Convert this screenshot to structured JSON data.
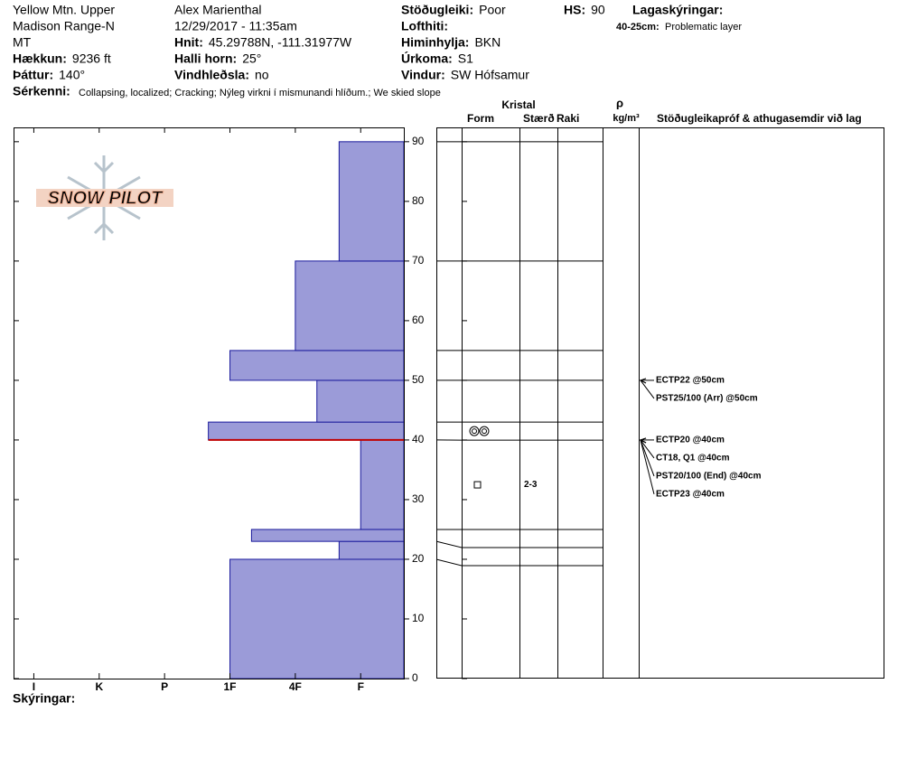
{
  "header": {
    "fields": [
      {
        "value": "Yellow Mtn. Upper"
      },
      {
        "value": "Madison Range-N"
      },
      {
        "value": "MT"
      },
      {
        "label": "Hækkun:",
        "value": "9236 ft"
      },
      {
        "label": "Þáttur:",
        "value": "140°"
      },
      {
        "value": "Alex Marienthal"
      },
      {
        "value": "12/29/2017 - 11:35am"
      },
      {
        "label": "Hnit:",
        "value": "45.29788N, -111.31977W"
      },
      {
        "label": "Halli horn:",
        "value": "25°"
      },
      {
        "label": "Vindhleðsla:",
        "value": "no"
      },
      {
        "label": "Stöðugleiki:",
        "value": "Poor"
      },
      {
        "label": "Lofthiti:"
      },
      {
        "label": "Himinhylja:",
        "value": "BKN"
      },
      {
        "label": "Úrkoma:",
        "value": "S1"
      },
      {
        "label": "Vindur:",
        "value": "SW Hófsamur"
      },
      {
        "label": "HS:",
        "value": 90
      }
    ],
    "features": {
      "label": "Sérkenni:",
      "value": "Collapsing, localized;  Cracking;  Nýleg virkni í mismunandi hlíðum.;  We skied slope"
    },
    "legend": {
      "title": "Lagaskýringar:",
      "entries": [
        {
          "label": "40-25cm:",
          "text": "Problematic layer"
        }
      ]
    },
    "logo": "SNOW PILOT"
  },
  "chart_data": {
    "type": "bar",
    "orientation": "horizontal",
    "color": "#9b9bd8",
    "edge_color": "#1a1a9c",
    "layers": [
      {
        "top": 20,
        "bottom": 0,
        "hardness": 3
      },
      {
        "top": 23,
        "bottom": 20,
        "hardness": 1.33
      },
      {
        "top": 25,
        "bottom": 23,
        "hardness": 2.67
      },
      {
        "top": 40,
        "bottom": 25,
        "hardness": 1,
        "form": "facets",
        "size": "2-3"
      },
      {
        "top": 43,
        "bottom": 40,
        "hardness": 3.33,
        "form": "rounds"
      },
      {
        "top": 50,
        "bottom": 43,
        "hardness": 1.67
      },
      {
        "top": 55,
        "bottom": 50,
        "hardness": 3
      },
      {
        "top": 70,
        "bottom": 55,
        "hardness": 2
      },
      {
        "top": 90,
        "bottom": 70,
        "hardness": 1.33
      }
    ],
    "critical_depth": 40,
    "critical_color": "#c00000",
    "xlim": [
      6.31,
      0.34
    ],
    "xticks": [
      {
        "value": 6,
        "label": "I"
      },
      {
        "value": 5,
        "label": "K"
      },
      {
        "value": 4,
        "label": "P"
      },
      {
        "value": 3,
        "label": "1F"
      },
      {
        "value": 2,
        "label": "4F"
      },
      {
        "value": 1,
        "label": "F"
      }
    ],
    "ylim": [
      0,
      92.4
    ],
    "yticks": [
      0,
      10,
      20,
      30,
      40,
      50,
      60,
      70,
      80,
      90
    ]
  },
  "table": {
    "headers": {
      "crystal": "Kristal",
      "form": "Form",
      "size": "Stærð",
      "moisture": "Raki",
      "rho": "ρ",
      "density_unit": "kg/m³",
      "tests": "Stöðugleikapróf & athugasemdir við lag"
    },
    "tests": [
      {
        "label": "ECTP22 @50cm",
        "depth": 50
      },
      {
        "label": "PST25/100 (Arr) @50cm",
        "depth": 50
      },
      {
        "label": "ECTP20 @40cm",
        "depth": 40
      },
      {
        "label": "CT18, Q1 @40cm",
        "depth": 40
      },
      {
        "label": "PST20/100 (End) @40cm",
        "depth": 40
      },
      {
        "label": "ECTP23 @40cm",
        "depth": 40
      }
    ]
  },
  "footer": "Skýringar:"
}
